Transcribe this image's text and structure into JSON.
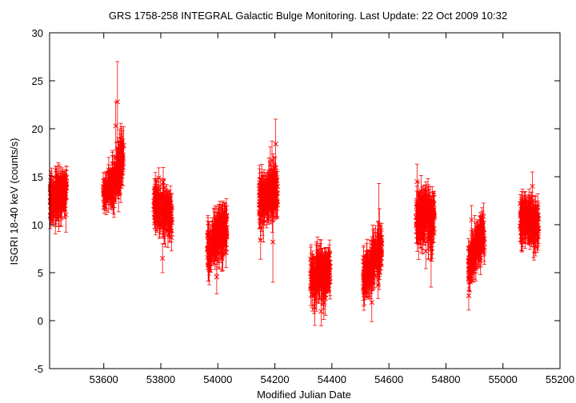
{
  "chart_data": {
    "type": "scatter",
    "title": "GRS 1758-258   INTEGRAL Galactic Bulge Monitoring.  Last Update: 22 Oct 2009 10:32",
    "xlabel": "Modified Julian Date",
    "ylabel": "ISGRI 18-40 keV (counts/s)",
    "xlim": [
      53410,
      55200
    ],
    "ylim": [
      -5,
      30
    ],
    "x_ticks": [
      53600,
      53800,
      54000,
      54200,
      54400,
      54600,
      54800,
      55000,
      55200
    ],
    "y_ticks": [
      -5,
      0,
      5,
      10,
      15,
      20,
      25,
      30
    ],
    "grid": false,
    "marker": "x",
    "error_bars": true,
    "color": "#ff0000",
    "series": [
      {
        "clusters": [
          {
            "x_start": 53412,
            "x_end": 53470,
            "y_start": 12.5,
            "y_end": 13.5,
            "spread": 1.4,
            "err": 1.4,
            "count": 150
          },
          {
            "x_start": 53598,
            "x_end": 53628,
            "y_start": 13.2,
            "y_end": 14.0,
            "spread": 0.9,
            "err": 1.2,
            "count": 60
          },
          {
            "x_start": 53628,
            "x_end": 53670,
            "y_start": 14.0,
            "y_end": 17.5,
            "spread": 1.5,
            "err": 1.6,
            "count": 90
          },
          {
            "x_start": 53775,
            "x_end": 53840,
            "y_start": 12.3,
            "y_end": 10.8,
            "spread": 1.4,
            "err": 1.4,
            "count": 150
          },
          {
            "x_start": 53962,
            "x_end": 54032,
            "y_start": 7.5,
            "y_end": 9.5,
            "spread": 1.6,
            "err": 1.4,
            "count": 160
          },
          {
            "x_start": 54145,
            "x_end": 54210,
            "y_start": 12.5,
            "y_end": 13.8,
            "spread": 1.5,
            "err": 1.5,
            "count": 150
          },
          {
            "x_start": 54325,
            "x_end": 54395,
            "y_start": 4.5,
            "y_end": 5.2,
            "spread": 1.6,
            "err": 1.5,
            "count": 150
          },
          {
            "x_start": 54510,
            "x_end": 54575,
            "y_start": 4.5,
            "y_end": 7.5,
            "spread": 1.5,
            "err": 1.4,
            "count": 150
          },
          {
            "x_start": 54695,
            "x_end": 54760,
            "y_start": 11.0,
            "y_end": 10.5,
            "spread": 1.8,
            "err": 1.6,
            "count": 150
          },
          {
            "x_start": 54878,
            "x_end": 54935,
            "y_start": 6.0,
            "y_end": 9.0,
            "spread": 1.5,
            "err": 1.4,
            "count": 120
          },
          {
            "x_start": 55060,
            "x_end": 55125,
            "y_start": 10.8,
            "y_end": 9.8,
            "spread": 1.4,
            "err": 1.3,
            "count": 150
          }
        ],
        "outliers": [
          {
            "x": 53648,
            "y": 22.8,
            "err": 4.2
          },
          {
            "x": 53642,
            "y": 20.3,
            "err": 2.5
          },
          {
            "x": 54203,
            "y": 18.4,
            "err": 2.6
          },
          {
            "x": 54190,
            "y": 16.7,
            "err": 2.0
          },
          {
            "x": 54193,
            "y": 8.2,
            "err": 4.2
          },
          {
            "x": 54150,
            "y": 8.4,
            "err": 2.0
          },
          {
            "x": 53806,
            "y": 6.5,
            "err": 1.5
          },
          {
            "x": 54565,
            "y": 9.0,
            "err": 5.3
          },
          {
            "x": 54748,
            "y": 7.5,
            "err": 4.0
          },
          {
            "x": 54880,
            "y": 2.6,
            "err": 1.5
          },
          {
            "x": 54540,
            "y": 1.9,
            "err": 2.0
          },
          {
            "x": 55103,
            "y": 14.0,
            "err": 1.5
          },
          {
            "x": 54890,
            "y": 10.5,
            "err": 1.5
          }
        ]
      }
    ]
  }
}
